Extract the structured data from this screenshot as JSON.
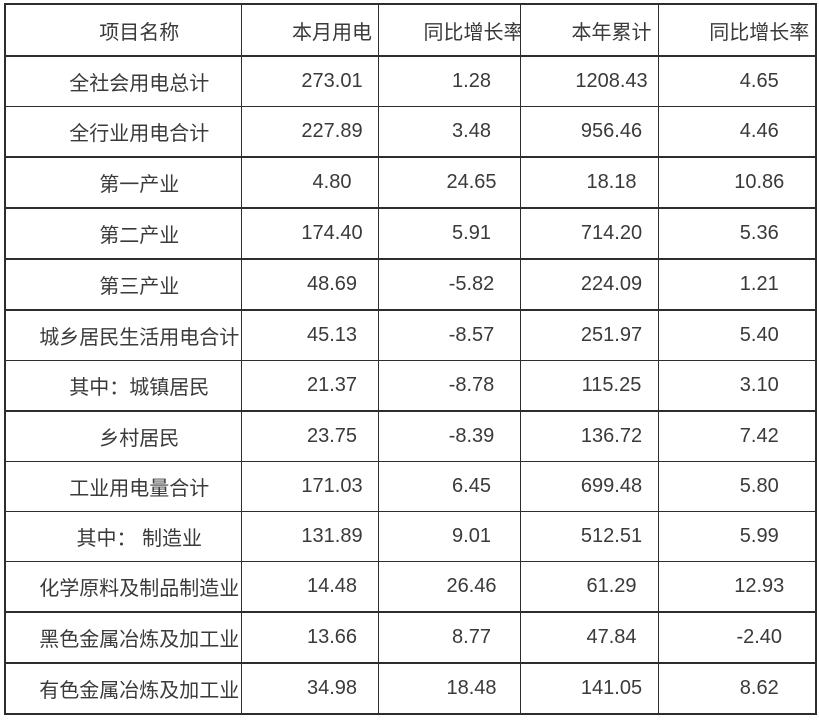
{
  "colors": {
    "background": "#ffffff",
    "border": "#2d2d2d",
    "text": "#3a3a3a"
  },
  "table": {
    "columns": [
      "项目名称",
      "本月用电",
      "同比增长率",
      "本年累计",
      "同比增长率"
    ],
    "rows": [
      {
        "label": "全社会用电总计",
        "values": [
          "273.01",
          "1.28",
          "1208.43",
          "4.65"
        ]
      },
      {
        "label": "全行业用电合计",
        "values": [
          "227.89",
          "3.48",
          "956.46",
          "4.46"
        ]
      },
      {
        "label": "第一产业",
        "values": [
          "4.80",
          "24.65",
          "18.18",
          "10.86"
        ]
      },
      {
        "label": "第二产业",
        "values": [
          "174.40",
          "5.91",
          "714.20",
          "5.36"
        ]
      },
      {
        "label": "第三产业",
        "values": [
          "48.69",
          "-5.82",
          "224.09",
          "1.21"
        ]
      },
      {
        "label": "城乡居民生活用电合计",
        "values": [
          "45.13",
          "-8.57",
          "251.97",
          "5.40"
        ]
      },
      {
        "label": "其中：城镇居民",
        "values": [
          "21.37",
          "-8.78",
          "115.25",
          "3.10"
        ]
      },
      {
        "label": "乡村居民",
        "values": [
          "23.75",
          "-8.39",
          "136.72",
          "7.42"
        ]
      },
      {
        "label": "工业用电量合计",
        "values": [
          "171.03",
          "6.45",
          "699.48",
          "5.80"
        ]
      },
      {
        "label": "其中： 制造业",
        "values": [
          "131.89",
          "9.01",
          "512.51",
          "5.99"
        ]
      },
      {
        "label": "化学原料及制品制造业",
        "values": [
          "14.48",
          "26.46",
          "61.29",
          "12.93"
        ]
      },
      {
        "label": "黑色金属冶炼及加工业",
        "values": [
          "13.66",
          "8.77",
          "47.84",
          "-2.40"
        ]
      },
      {
        "label": "有色金属冶炼及加工业",
        "values": [
          "34.98",
          "18.48",
          "141.05",
          "8.62"
        ]
      }
    ]
  }
}
